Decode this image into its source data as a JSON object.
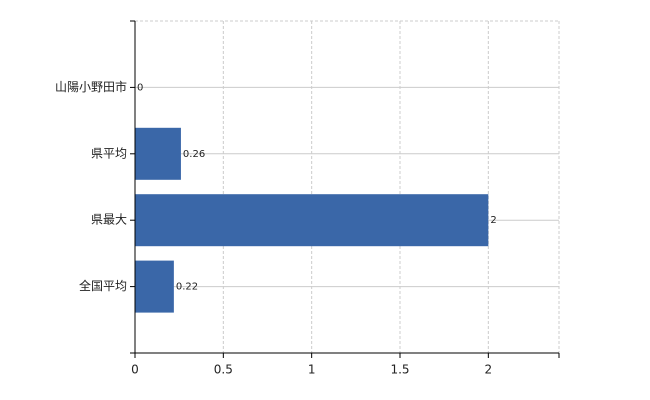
{
  "chart_data": {
    "type": "bar",
    "orientation": "horizontal",
    "categories": [
      "山陽小野田市",
      "県平均",
      "県最大",
      "全国平均"
    ],
    "values": [
      0,
      0.26,
      2,
      0.22
    ],
    "color": "#3a67a8",
    "xlim": [
      0,
      2.4
    ],
    "xticks": [
      0,
      0.5,
      1,
      1.5,
      2
    ],
    "grid": true
  }
}
